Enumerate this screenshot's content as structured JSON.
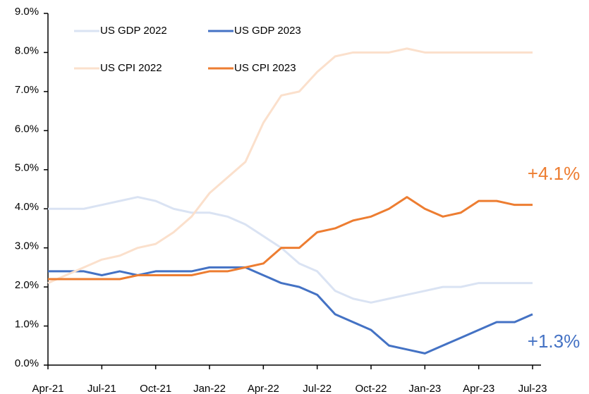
{
  "chart_data": {
    "type": "line",
    "categories": [
      "Apr-21",
      null,
      null,
      "Jul-21",
      null,
      null,
      "Oct-21",
      null,
      null,
      "Jan-22",
      null,
      null,
      "Apr-22",
      null,
      null,
      "Jul-22",
      null,
      null,
      "Oct-22",
      null,
      null,
      "Jan-23",
      null,
      null,
      "Apr-23",
      null,
      null,
      "Jul-23"
    ],
    "series": [
      {
        "name": "US GDP 2022",
        "color": "#dae3f3",
        "values": [
          4.0,
          4.0,
          4.0,
          4.1,
          4.2,
          4.3,
          4.2,
          4.0,
          3.9,
          3.9,
          3.8,
          3.6,
          3.3,
          3.0,
          2.6,
          2.4,
          1.9,
          1.7,
          1.6,
          1.7,
          1.8,
          1.9,
          2.0,
          2.0,
          2.1,
          2.1,
          2.1,
          2.1
        ]
      },
      {
        "name": "US GDP 2023",
        "color": "#4472c4",
        "values": [
          2.4,
          2.4,
          2.4,
          2.3,
          2.4,
          2.3,
          2.4,
          2.4,
          2.4,
          2.5,
          2.5,
          2.5,
          2.3,
          2.1,
          2.0,
          1.8,
          1.3,
          1.1,
          0.9,
          0.5,
          0.4,
          0.3,
          0.5,
          0.7,
          0.9,
          1.1,
          1.1,
          1.3
        ]
      },
      {
        "name": "US CPI 2022",
        "color": "#fbe0cc",
        "values": [
          2.1,
          2.3,
          2.5,
          2.7,
          2.8,
          3.0,
          3.1,
          3.4,
          3.8,
          4.4,
          4.8,
          5.2,
          6.2,
          6.9,
          7.0,
          7.5,
          7.9,
          8.0,
          8.0,
          8.0,
          8.1,
          8.0,
          8.0,
          8.0,
          8.0,
          8.0,
          8.0,
          8.0
        ]
      },
      {
        "name": "US CPI 2023",
        "color": "#ed7d31",
        "values": [
          2.2,
          2.2,
          2.2,
          2.2,
          2.2,
          2.3,
          2.3,
          2.3,
          2.3,
          2.4,
          2.4,
          2.5,
          2.6,
          3.0,
          3.0,
          3.4,
          3.5,
          3.7,
          3.8,
          4.0,
          4.3,
          4.0,
          3.8,
          3.9,
          4.2,
          4.2,
          4.1,
          4.1
        ]
      }
    ],
    "ylim": [
      0,
      9
    ],
    "yticks": [
      {
        "value": 0,
        "label": "0.0%"
      },
      {
        "value": 1,
        "label": "1.0%"
      },
      {
        "value": 2,
        "label": "2.0%"
      },
      {
        "value": 3,
        "label": "3.0%"
      },
      {
        "value": 4,
        "label": "4.0%"
      },
      {
        "value": 5,
        "label": "5.0%"
      },
      {
        "value": 6,
        "label": "6.0%"
      },
      {
        "value": 7,
        "label": "7.0%"
      },
      {
        "value": 8,
        "label": "8.0%"
      },
      {
        "value": 9,
        "label": "9.0%"
      }
    ],
    "annotations": [
      {
        "text": "+4.1%",
        "color": "#ed7d31"
      },
      {
        "text": "+1.3%",
        "color": "#4472c4"
      }
    ],
    "grid": false
  }
}
